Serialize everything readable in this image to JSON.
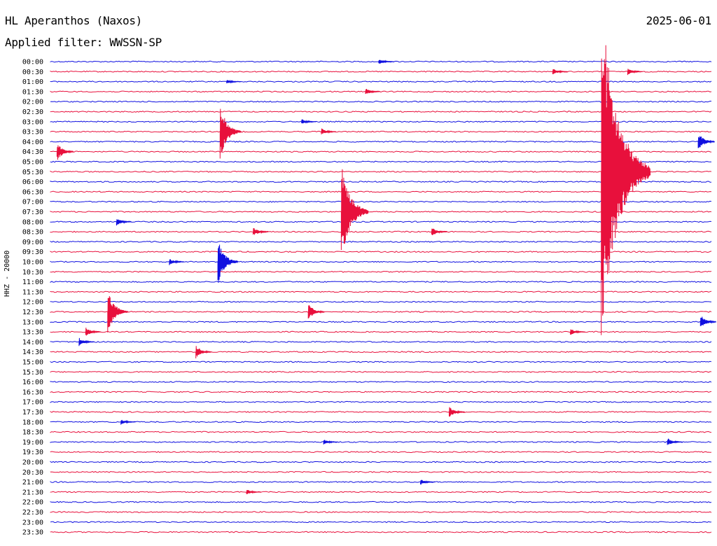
{
  "header": {
    "station": "HL Aperanthos (Naxos)",
    "date": "2025-06-01",
    "filter": "Applied filter: WWSSN-SP"
  },
  "chart_data": {
    "type": "helicorder",
    "title": "HL Aperanthos (Naxos)",
    "subtitle": "Applied filter: WWSSN-SP",
    "date": "2025-06-01",
    "ylabel": "HHZ - 20000",
    "line_colors": [
      "#1010e0",
      "#e8103c"
    ],
    "rows": [
      "00:00",
      "00:30",
      "01:00",
      "01:30",
      "02:00",
      "02:30",
      "03:00",
      "03:30",
      "04:00",
      "04:30",
      "05:00",
      "05:30",
      "06:00",
      "06:30",
      "07:00",
      "07:30",
      "08:00",
      "08:30",
      "09:00",
      "09:30",
      "10:00",
      "10:30",
      "11:00",
      "11:30",
      "12:00",
      "12:30",
      "13:00",
      "13:30",
      "14:00",
      "14:30",
      "15:00",
      "15:30",
      "16:00",
      "16:30",
      "17:00",
      "17:30",
      "18:00",
      "18:30",
      "19:00",
      "19:30",
      "20:00",
      "20:30",
      "21:00",
      "21:30",
      "22:00",
      "22:30",
      "23:00",
      "23:30"
    ],
    "minutes_per_row": 30,
    "events": [
      {
        "row": 0,
        "minute": 14.9,
        "amp": 4
      },
      {
        "row": 1,
        "minute": 22.8,
        "amp": 5
      },
      {
        "row": 1,
        "minute": 26.2,
        "amp": 5
      },
      {
        "row": 2,
        "minute": 8.0,
        "amp": 3
      },
      {
        "row": 3,
        "minute": 14.3,
        "amp": 5
      },
      {
        "row": 6,
        "minute": 11.4,
        "amp": 4
      },
      {
        "row": 7,
        "minute": 7.7,
        "amp": 40
      },
      {
        "row": 7,
        "minute": 12.3,
        "amp": 5
      },
      {
        "row": 8,
        "minute": 29.4,
        "amp": 14
      },
      {
        "row": 9,
        "minute": 0.3,
        "amp": 14
      },
      {
        "row": 11,
        "minute": 25.0,
        "amp": 250
      },
      {
        "row": 15,
        "minute": 13.2,
        "amp": 75
      },
      {
        "row": 16,
        "minute": 3.0,
        "amp": 6
      },
      {
        "row": 17,
        "minute": 9.2,
        "amp": 7
      },
      {
        "row": 17,
        "minute": 17.3,
        "amp": 7
      },
      {
        "row": 20,
        "minute": 7.6,
        "amp": 34
      },
      {
        "row": 20,
        "minute": 5.4,
        "amp": 5
      },
      {
        "row": 25,
        "minute": 2.6,
        "amp": 34
      },
      {
        "row": 25,
        "minute": 11.7,
        "amp": 13
      },
      {
        "row": 26,
        "minute": 29.5,
        "amp": 11
      },
      {
        "row": 27,
        "minute": 1.6,
        "amp": 7
      },
      {
        "row": 27,
        "minute": 23.6,
        "amp": 5
      },
      {
        "row": 28,
        "minute": 1.3,
        "amp": 6
      },
      {
        "row": 29,
        "minute": 6.6,
        "amp": 10
      },
      {
        "row": 35,
        "minute": 18.1,
        "amp": 8
      },
      {
        "row": 36,
        "minute": 3.2,
        "amp": 4
      },
      {
        "row": 38,
        "minute": 12.4,
        "amp": 4
      },
      {
        "row": 38,
        "minute": 28.0,
        "amp": 6
      },
      {
        "row": 42,
        "minute": 16.8,
        "amp": 4
      },
      {
        "row": 43,
        "minute": 8.9,
        "amp": 4
      }
    ]
  }
}
